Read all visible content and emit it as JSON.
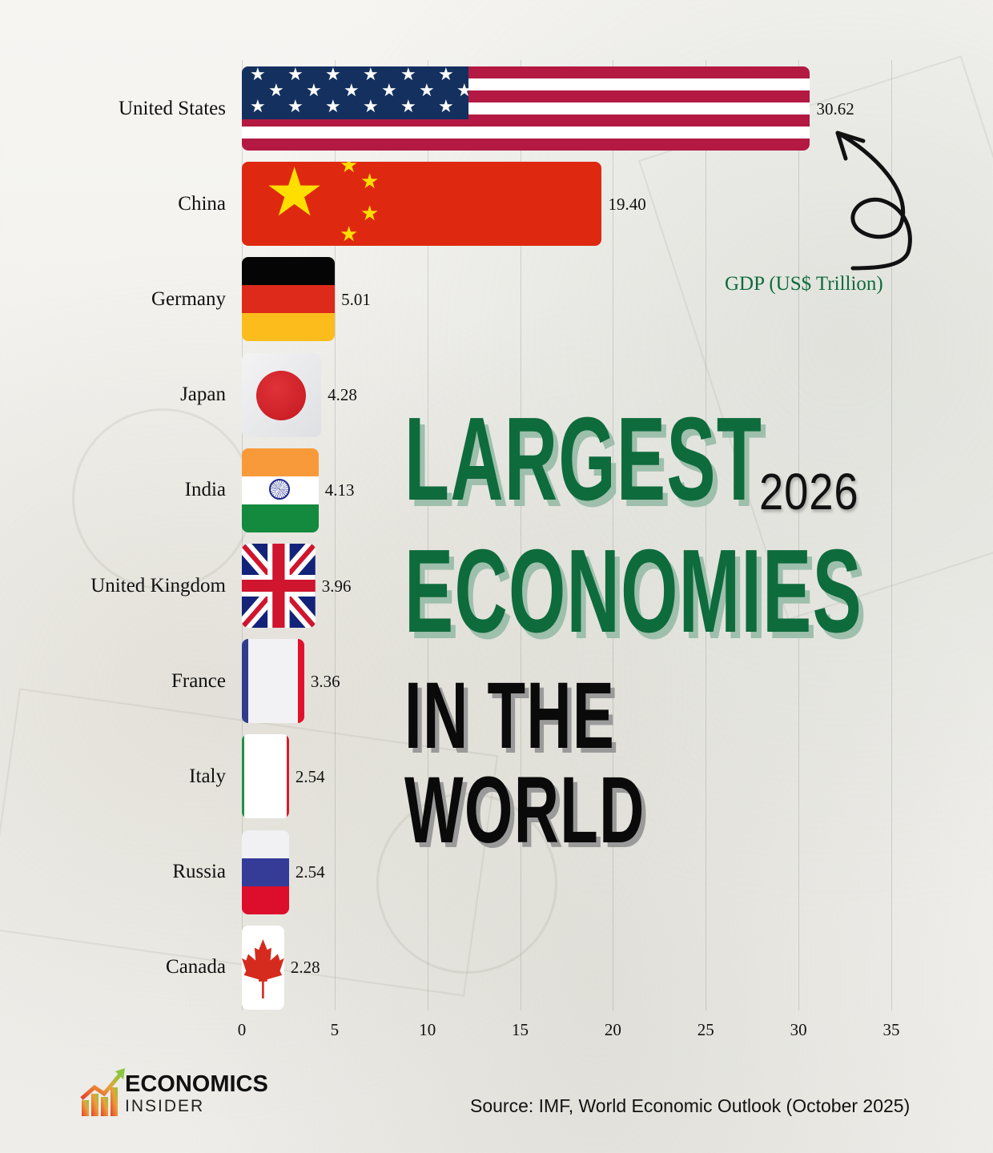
{
  "title": {
    "line1": "LARGEST",
    "year": "2026",
    "line2": "ECONOMIES",
    "line3": "IN THE WORLD"
  },
  "annotation": {
    "unit_label": "GDP (US$ Trillion)",
    "arrow": "curly-arrow-pointing-to-top-value"
  },
  "source": "Source: IMF, World Economic Outlook (October 2025)",
  "logo": {
    "line1": "ECONOMICS",
    "line2": "INSIDER"
  },
  "colors": {
    "title_green": "#0e6b3c",
    "title_shadow": "#9dbfab",
    "text": "#111111",
    "us_blue": "#14305f",
    "us_red": "#b31942",
    "china_red": "#de2910",
    "china_yellow": "#ffde00"
  },
  "chart_data": {
    "type": "bar",
    "orientation": "horizontal",
    "title": "Largest Economies in the World 2026",
    "xlabel": "GDP (US$ Trillion)",
    "ylabel": "",
    "categories": [
      "United States",
      "China",
      "Germany",
      "Japan",
      "India",
      "United Kingdom",
      "France",
      "Italy",
      "Russia",
      "Canada"
    ],
    "values": [
      30.62,
      19.4,
      5.01,
      4.28,
      4.13,
      3.96,
      3.36,
      2.54,
      2.54,
      2.28
    ],
    "value_labels": [
      "30.62",
      "19.40",
      "5.01",
      "4.28",
      "4.13",
      "3.96",
      "3.36",
      "2.54",
      "2.54",
      "2.28"
    ],
    "xticks": [
      "0",
      "5",
      "10",
      "15",
      "20",
      "25",
      "30",
      "35"
    ],
    "xlim": [
      0,
      35
    ],
    "grid": "vertical",
    "bar_fill": "country flags",
    "source": "IMF, World Economic Outlook (October 2025)"
  }
}
